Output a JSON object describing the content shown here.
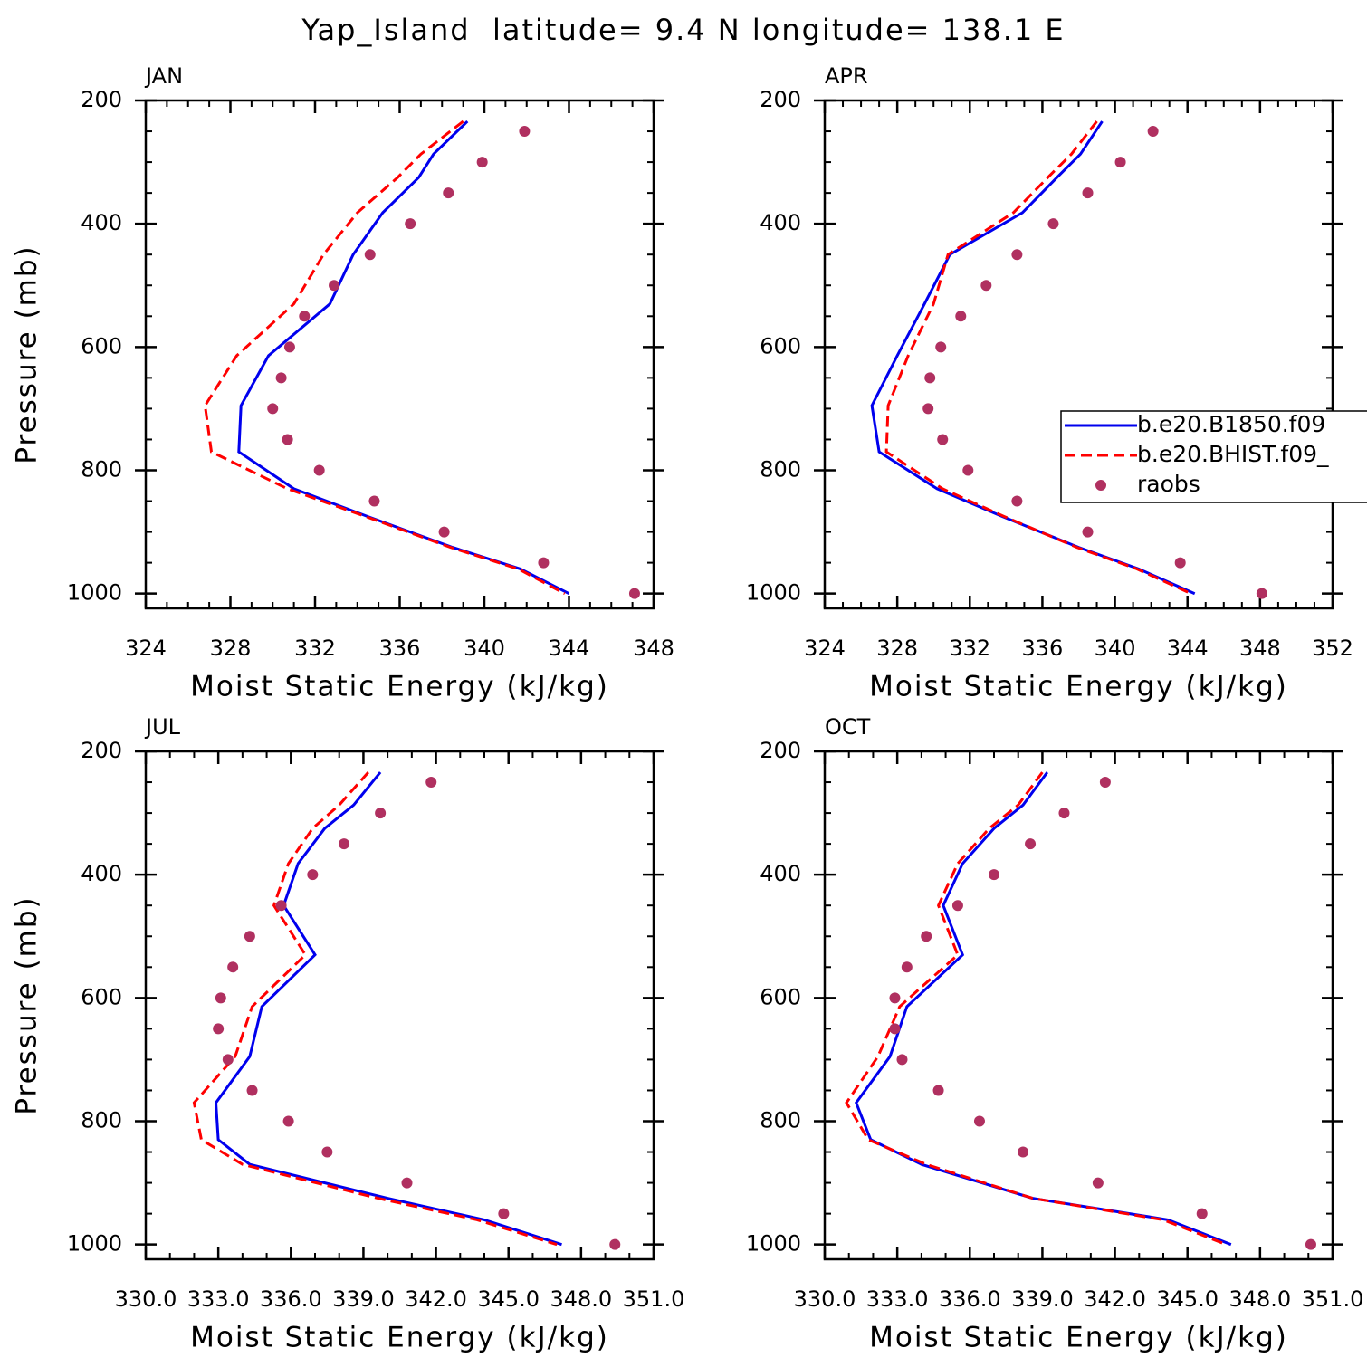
{
  "title": "Yap_Island  latitude= 9.4 N longitude= 138.1 E",
  "chart_data": [
    {
      "type": "line",
      "title": "JAN",
      "x_label": "Moist Static Energy (kJ/kg)",
      "y_label": "Pressure (mb)",
      "xlim": [
        324,
        348
      ],
      "xticks": [
        324,
        328,
        332,
        336,
        340,
        344,
        348
      ],
      "ylim": [
        1024,
        200
      ],
      "yticks": [
        200,
        400,
        600,
        800,
        1000
      ],
      "series": [
        {
          "color": "#0000ee",
          "dash": "solid",
          "x": [
            339.2,
            337.6,
            336.9,
            335.2,
            333.8,
            332.7,
            329.8,
            328.5,
            328.4,
            331.0,
            334.5,
            338.5,
            341.7,
            344.0
          ],
          "y": [
            234,
            287,
            325,
            382,
            450,
            530,
            614,
            695,
            770,
            830,
            875,
            925,
            960,
            1000
          ]
        },
        {
          "color": "#ff0000",
          "dash": "dashed",
          "x": [
            339.0,
            337.0,
            335.9,
            334.0,
            332.4,
            331.0,
            328.3,
            326.8,
            327.1,
            330.7,
            334.4,
            338.4,
            341.6,
            343.8
          ],
          "y": [
            234,
            287,
            325,
            382,
            450,
            530,
            614,
            695,
            770,
            830,
            875,
            925,
            960,
            1000
          ]
        },
        {
          "color": "#b03060",
          "marker": "dot",
          "x": [
            341.9,
            339.9,
            338.3,
            336.5,
            334.6,
            332.9,
            331.5,
            330.8,
            330.4,
            330.0,
            330.7,
            332.2,
            334.8,
            338.1,
            342.8,
            347.1
          ],
          "y": [
            250,
            300,
            350,
            400,
            450,
            500,
            550,
            600,
            650,
            700,
            750,
            800,
            850,
            900,
            950,
            1000
          ]
        }
      ]
    },
    {
      "type": "line",
      "title": "APR",
      "x_label": "Moist Static Energy (kJ/kg)",
      "legend": "right",
      "xlim": [
        324,
        352
      ],
      "xticks": [
        324,
        328,
        332,
        336,
        340,
        344,
        348,
        352
      ],
      "ylim": [
        1024,
        200
      ],
      "yticks": [
        200,
        400,
        600,
        800,
        1000
      ],
      "series": [
        {
          "name": "b.e20.B1850.f09",
          "color": "#0000ee",
          "dash": "solid",
          "x": [
            339.3,
            338.1,
            336.8,
            334.9,
            330.9,
            329.5,
            328.0,
            326.6,
            327.0,
            330.2,
            333.8,
            338.0,
            341.3,
            344.4
          ],
          "y": [
            234,
            287,
            325,
            382,
            450,
            530,
            614,
            695,
            770,
            830,
            875,
            925,
            960,
            1000
          ]
        },
        {
          "name": "b.e20.BHIST.f09_",
          "color": "#ff0000",
          "dash": "dashed",
          "x": [
            339.0,
            337.6,
            336.3,
            334.4,
            330.8,
            330.0,
            328.6,
            327.5,
            327.4,
            330.5,
            333.9,
            337.9,
            341.2,
            344.2
          ],
          "y": [
            234,
            287,
            325,
            382,
            450,
            530,
            614,
            695,
            770,
            830,
            875,
            925,
            960,
            1000
          ]
        },
        {
          "name": "raobs",
          "color": "#b03060",
          "marker": "dot",
          "x": [
            342.1,
            340.3,
            338.5,
            336.6,
            334.6,
            332.9,
            331.5,
            330.4,
            329.8,
            329.7,
            330.5,
            331.9,
            334.6,
            338.5,
            343.6,
            348.1
          ],
          "y": [
            250,
            300,
            350,
            400,
            450,
            500,
            550,
            600,
            650,
            700,
            750,
            800,
            850,
            900,
            950,
            1000
          ]
        }
      ]
    },
    {
      "type": "line",
      "title": "JUL",
      "x_label": "Moist Static Energy (kJ/kg)",
      "y_label": "Pressure (mb)",
      "xlim": [
        330,
        351
      ],
      "xticks": [
        {
          "value": 330,
          "label": "330.0"
        },
        {
          "value": 333,
          "label": "333.0"
        },
        {
          "value": 336,
          "label": "336.0"
        },
        {
          "value": 339,
          "label": "339.0"
        },
        {
          "value": 342,
          "label": "342.0"
        },
        {
          "value": 345,
          "label": "345.0"
        },
        {
          "value": 348,
          "label": "348.0"
        },
        {
          "value": 351,
          "label": "351.0"
        }
      ],
      "ylim": [
        1024,
        200
      ],
      "yticks": [
        200,
        400,
        600,
        800,
        1000
      ],
      "series": [
        {
          "color": "#0000ee",
          "dash": "solid",
          "x": [
            339.7,
            338.6,
            337.4,
            336.3,
            335.7,
            337.0,
            334.8,
            334.3,
            332.9,
            333.0,
            334.3,
            340.0,
            344.0,
            347.2
          ],
          "y": [
            234,
            287,
            325,
            382,
            450,
            530,
            614,
            695,
            770,
            830,
            870,
            925,
            960,
            1000
          ]
        },
        {
          "color": "#ff0000",
          "dash": "dashed",
          "x": [
            339.2,
            338.0,
            336.9,
            335.9,
            335.3,
            336.6,
            334.4,
            333.7,
            332.0,
            332.3,
            334.0,
            339.6,
            343.7,
            347.0
          ],
          "y": [
            234,
            287,
            325,
            382,
            450,
            530,
            614,
            695,
            770,
            830,
            870,
            925,
            960,
            1000
          ]
        },
        {
          "color": "#b03060",
          "marker": "dot",
          "x": [
            341.8,
            339.7,
            338.2,
            336.9,
            335.6,
            334.3,
            333.6,
            333.1,
            333.0,
            333.4,
            334.4,
            335.9,
            337.5,
            340.8,
            344.8,
            349.4
          ],
          "y": [
            250,
            300,
            350,
            400,
            450,
            500,
            550,
            600,
            650,
            700,
            750,
            800,
            850,
            900,
            950,
            1000
          ]
        }
      ]
    },
    {
      "type": "line",
      "title": "OCT",
      "x_label": "Moist Static Energy (kJ/kg)",
      "xlim": [
        330,
        351
      ],
      "xticks": [
        {
          "value": 330,
          "label": "330.0"
        },
        {
          "value": 333,
          "label": "333.0"
        },
        {
          "value": 336,
          "label": "336.0"
        },
        {
          "value": 339,
          "label": "339.0"
        },
        {
          "value": 342,
          "label": "342.0"
        },
        {
          "value": 345,
          "label": "345.0"
        },
        {
          "value": 348,
          "label": "348.0"
        },
        {
          "value": 351,
          "label": "351.0"
        }
      ],
      "ylim": [
        1024,
        200
      ],
      "yticks": [
        200,
        400,
        600,
        800,
        1000
      ],
      "series": [
        {
          "color": "#0000ee",
          "dash": "solid",
          "x": [
            339.2,
            338.2,
            337.0,
            335.7,
            334.9,
            335.7,
            333.4,
            332.7,
            331.3,
            331.9,
            334.0,
            338.6,
            344.2,
            346.8
          ],
          "y": [
            234,
            287,
            325,
            382,
            450,
            530,
            614,
            695,
            770,
            830,
            870,
            925,
            960,
            1000
          ]
        },
        {
          "color": "#ff0000",
          "dash": "dashed",
          "x": [
            339.0,
            338.0,
            336.8,
            335.5,
            334.7,
            335.5,
            333.1,
            332.2,
            330.9,
            331.8,
            334.2,
            338.6,
            344.0,
            346.6
          ],
          "y": [
            234,
            287,
            325,
            382,
            450,
            530,
            614,
            695,
            770,
            830,
            870,
            925,
            960,
            1000
          ]
        },
        {
          "color": "#b03060",
          "marker": "dot",
          "x": [
            341.6,
            339.9,
            338.5,
            337.0,
            335.5,
            334.2,
            333.4,
            332.9,
            332.9,
            333.2,
            334.7,
            336.4,
            338.2,
            341.3,
            345.6,
            350.1
          ],
          "y": [
            250,
            300,
            350,
            400,
            450,
            500,
            550,
            600,
            650,
            700,
            750,
            800,
            850,
            900,
            950,
            1000
          ]
        }
      ]
    }
  ]
}
